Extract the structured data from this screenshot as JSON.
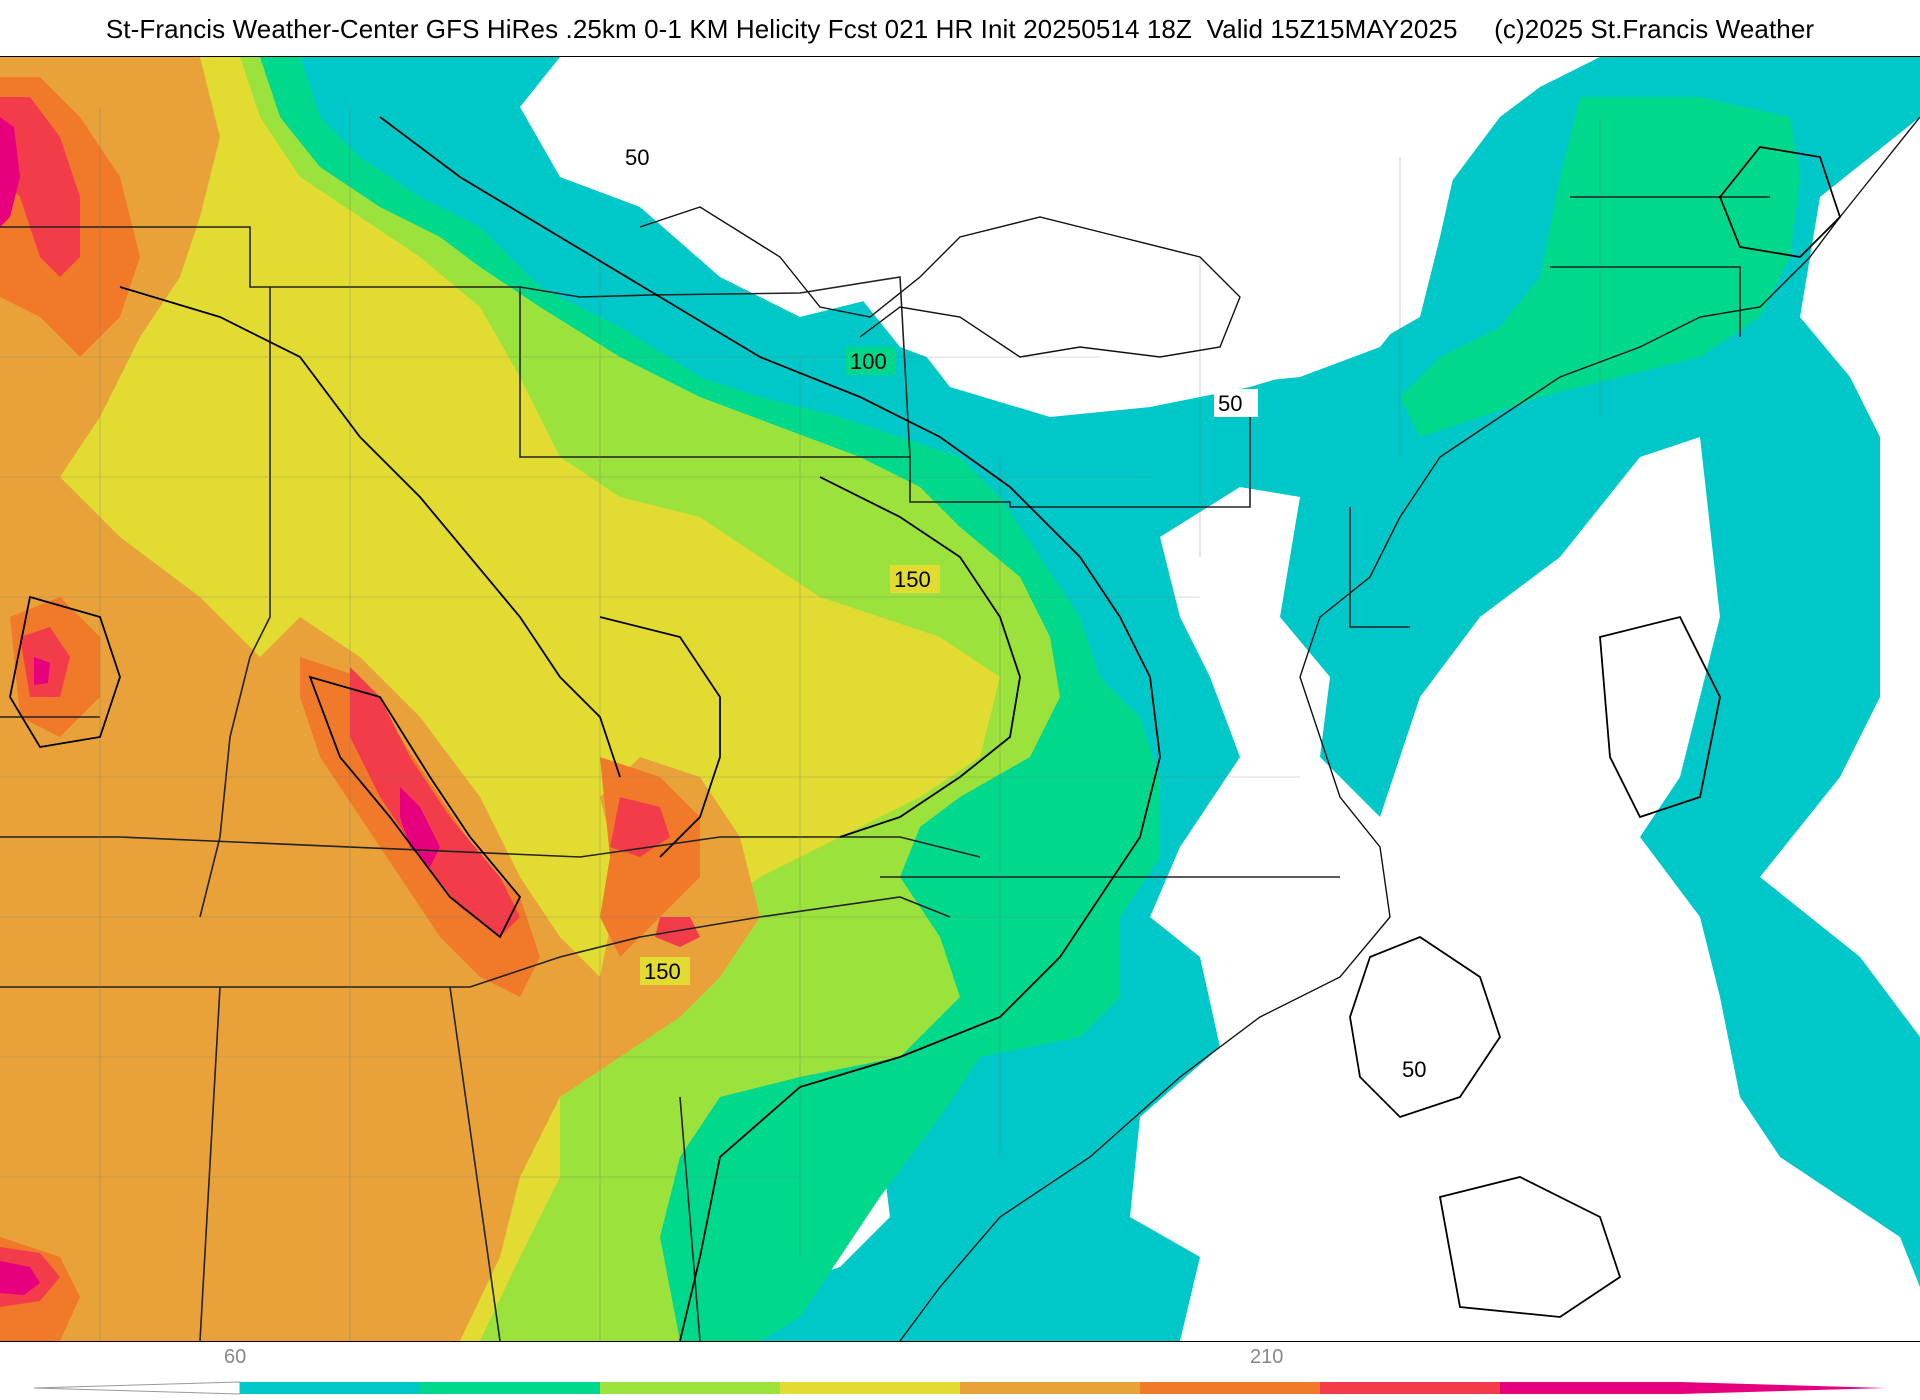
{
  "title": {
    "product": "St-Francis Weather-Center GFS HiRes .25km 0-1 KM Helicity Fcst 021 HR Init 20250514 18Z",
    "valid": "Valid 15Z15MAY2025",
    "copyright": "(c)2025 St.Francis Weather"
  },
  "contour_labels": [
    "50",
    "100",
    "150",
    "150",
    "50",
    "50"
  ],
  "legend": {
    "tick_labels": [
      "60",
      "210"
    ],
    "colors": [
      "#00c8c8",
      "#00d98c",
      "#9be23c",
      "#e2dc32",
      "#e9a23a",
      "#f07a2a",
      "#f23c4a",
      "#e6007e"
    ]
  },
  "fill_colors": {
    "low": "#00c8c8",
    "low_mid": "#00d98c",
    "mid": "#9be23c",
    "mid_high": "#e2dc32",
    "high": "#e9a23a",
    "higher": "#f07a2a",
    "very_high": "#f23c4a",
    "extreme": "#e6007e"
  }
}
